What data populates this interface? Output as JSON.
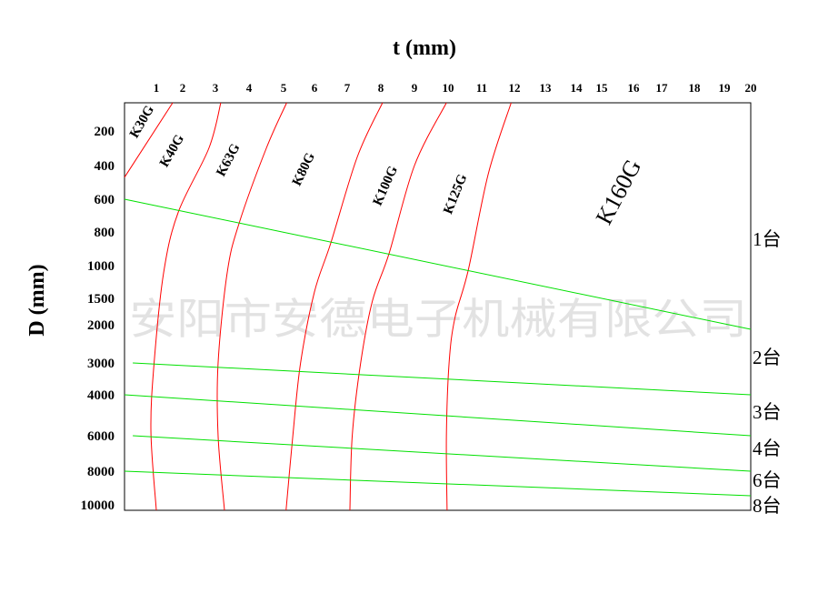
{
  "chart_data": {
    "type": "line",
    "xlabel": "t (mm)",
    "ylabel": "D (mm)",
    "x_ticks": [
      1,
      2,
      3,
      4,
      5,
      6,
      7,
      8,
      9,
      10,
      11,
      12,
      13,
      14,
      15,
      16,
      17,
      18,
      19,
      20
    ],
    "y_ticks": [
      200,
      400,
      600,
      800,
      1000,
      1500,
      2000,
      3000,
      4000,
      6000,
      8000,
      10000
    ],
    "zone_labels": [
      "K30G",
      "K40G",
      "K63G",
      "K80G",
      "K100G",
      "K125G",
      "K160G"
    ],
    "boundary_color": "#ff0000",
    "count_line_color": "#00e000",
    "boundaries": [
      {
        "points": [
          [
            1.62,
            40
          ],
          [
            0,
            470
          ]
        ]
      },
      {
        "points": [
          [
            3.16,
            40
          ],
          [
            2.8,
            300
          ],
          [
            1.83,
            680
          ],
          [
            1.28,
            1100
          ],
          [
            0.93,
            3000
          ],
          [
            0.83,
            5800
          ],
          [
            1.0,
            10300
          ]
        ]
      },
      {
        "points": [
          [
            5.1,
            40
          ],
          [
            4.5,
            300
          ],
          [
            3.7,
            750
          ],
          [
            3.35,
            1110
          ],
          [
            3.08,
            3000
          ],
          [
            3.08,
            6000
          ],
          [
            3.27,
            10300
          ]
        ]
      },
      {
        "points": [
          [
            8.05,
            40
          ],
          [
            7.3,
            350
          ],
          [
            6.5,
            865
          ],
          [
            6.0,
            1400
          ],
          [
            5.55,
            3000
          ],
          [
            5.3,
            6000
          ],
          [
            5.08,
            10300
          ]
        ]
      },
      {
        "points": [
          [
            9.95,
            40
          ],
          [
            9.0,
            400
          ],
          [
            8.25,
            925
          ],
          [
            7.75,
            1550
          ],
          [
            7.4,
            3000
          ],
          [
            7.15,
            6000
          ],
          [
            7.08,
            10300
          ]
        ]
      },
      {
        "points": [
          [
            11.9,
            40
          ],
          [
            11.2,
            450
          ],
          [
            10.6,
            1070
          ],
          [
            10.2,
            1880
          ],
          [
            10.03,
            3000
          ],
          [
            9.95,
            6000
          ],
          [
            9.97,
            10300
          ]
        ]
      }
    ],
    "count_lines": [
      {
        "label": "1台",
        "points": [
          [
            0,
            600
          ],
          [
            20,
            2120
          ]
        ]
      },
      {
        "label": "2台",
        "points": [
          [
            0.26,
            3000
          ],
          [
            20,
            4000
          ]
        ]
      },
      {
        "label": "3台",
        "points": [
          [
            0,
            4000
          ],
          [
            20,
            6000
          ]
        ]
      },
      {
        "label": "4台",
        "points": [
          [
            0.26,
            6000
          ],
          [
            20,
            8000
          ]
        ]
      },
      {
        "label": "6台",
        "points": [
          [
            0,
            8000
          ],
          [
            20,
            9460
          ]
        ]
      },
      {
        "label": "8台",
        "points": []
      }
    ]
  },
  "watermark": "安阳市安德电子机械有限公司"
}
